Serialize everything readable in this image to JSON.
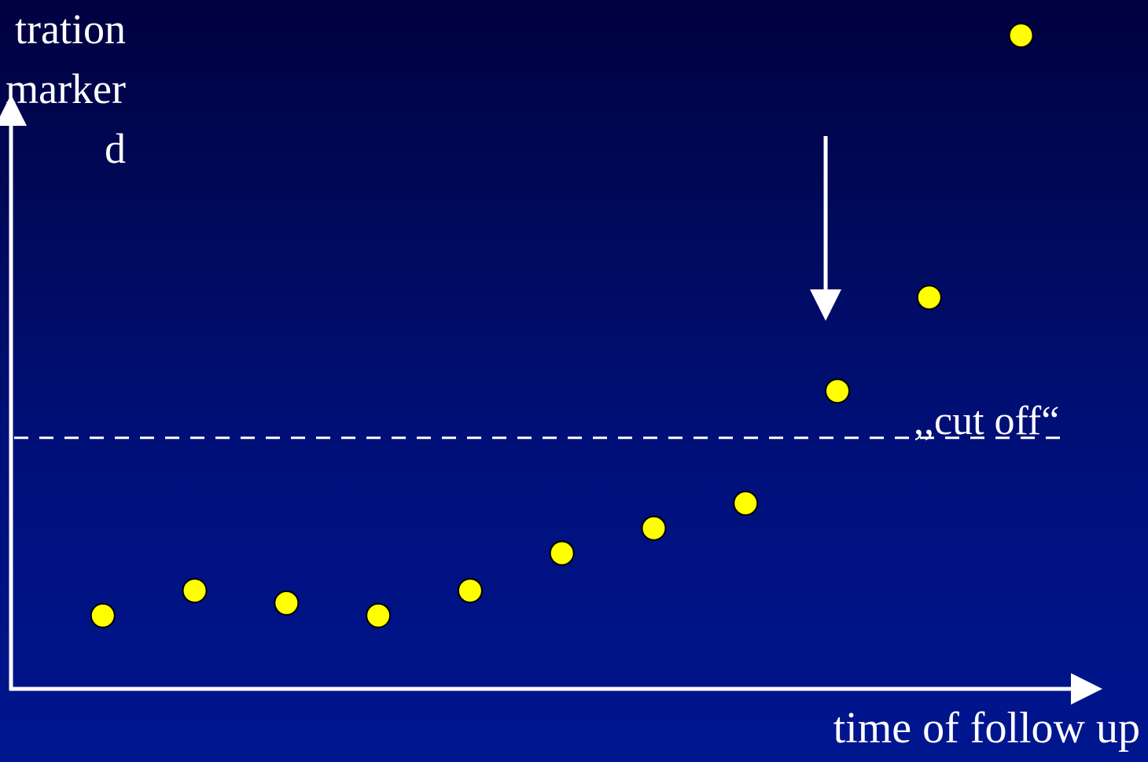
{
  "chart_data": {
    "type": "scatter",
    "ylabel_lines": [
      "tration",
      "marker",
      "d"
    ],
    "xlabel": "time of follow up",
    "annotation": ",,cut off“",
    "cutoff": 0.405,
    "points": [
      {
        "x": 1,
        "y": 0.12
      },
      {
        "x": 2,
        "y": 0.16
      },
      {
        "x": 3,
        "y": 0.14
      },
      {
        "x": 4,
        "y": 0.12
      },
      {
        "x": 5,
        "y": 0.16
      },
      {
        "x": 6,
        "y": 0.22
      },
      {
        "x": 7,
        "y": 0.26
      },
      {
        "x": 8,
        "y": 0.3
      },
      {
        "x": 9,
        "y": 0.48
      },
      {
        "x": 10,
        "y": 0.63
      },
      {
        "x": 11,
        "y": 1.05
      }
    ],
    "arrow_at_x": 9,
    "xlim": [
      0,
      11.8
    ],
    "ylim": [
      0,
      1.05
    ],
    "colors": {
      "point_fill": "#ffff00",
      "point_stroke": "#000000",
      "axis": "#ffffff",
      "cutoff_line": "#ffffff"
    }
  }
}
